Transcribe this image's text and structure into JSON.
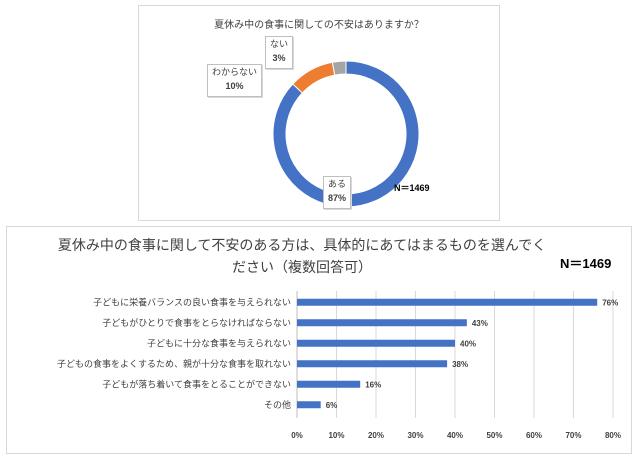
{
  "chart_data": [
    {
      "type": "pie",
      "title": "夏休み中の食事に関しての不安はありますか？",
      "n_label": "N＝1469",
      "slices": [
        {
          "label": "ある",
          "value": 87,
          "value_label": "87%",
          "color": "#4472c4"
        },
        {
          "label": "わからない",
          "value": 10,
          "value_label": "10%",
          "color": "#ed7d31"
        },
        {
          "label": "ない",
          "value": 3,
          "value_label": "3%",
          "color": "#a5a5a5"
        }
      ]
    },
    {
      "type": "bar",
      "orientation": "horizontal",
      "title_line1": "夏休み中の食事に関して不安のある方は、具体的にあてはまるものを選んでく",
      "title_line2": "ださい（複数回答可）",
      "n_label": "N＝1469",
      "categories": [
        "子どもに栄養バランスの良い食事を与えられない",
        "子どもがひとりで食事をとらなければならない",
        "子どもに十分な食事を与えられない",
        "子どもの食事をよくするため、親が十分な食事を取れない",
        "子どもが落ち着いて食事をとることができない",
        "その他"
      ],
      "values": [
        76,
        43,
        40,
        38,
        16,
        6
      ],
      "value_labels": [
        "76%",
        "43%",
        "40%",
        "38%",
        "16%",
        "6%"
      ],
      "xlim": [
        0,
        80
      ],
      "xticks": [
        "0%",
        "10%",
        "20%",
        "30%",
        "40%",
        "50%",
        "60%",
        "70%",
        "80%"
      ],
      "bar_color": "#4472c4",
      "grid": true
    }
  ]
}
